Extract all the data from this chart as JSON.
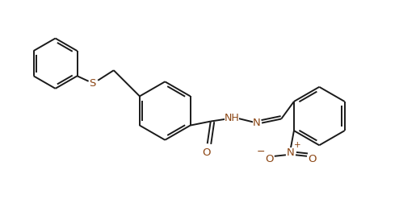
{
  "bg_color": "#ffffff",
  "line_color": "#1a1a1a",
  "heteroatom_color": "#8B4513",
  "bond_width": 1.4,
  "dbo": 0.07,
  "figsize": [
    4.94,
    2.73
  ],
  "dpi": 100,
  "xlim": [
    0,
    9.8
  ],
  "ylim": [
    0,
    5.4
  ]
}
